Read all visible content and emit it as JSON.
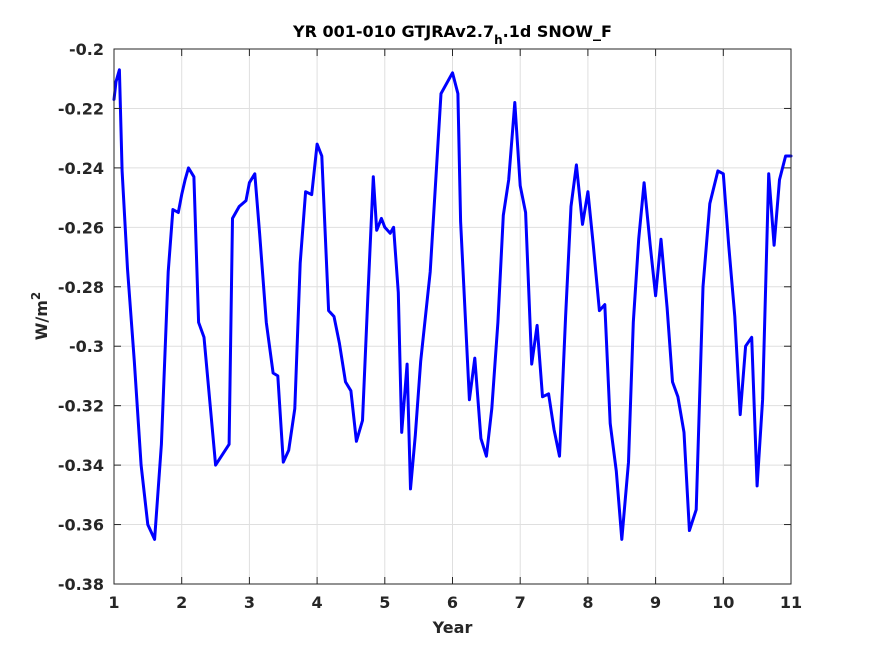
{
  "chart_data": {
    "type": "line",
    "title": {
      "pre": "YR 001-010 GTJRAv2.7",
      "sub": "h",
      "post": ".1d SNOW_F"
    },
    "xlabel": "Year",
    "ylabel": {
      "base": "W/m",
      "sup": "2"
    },
    "xlim": [
      1,
      11
    ],
    "ylim": [
      -0.38,
      -0.2
    ],
    "xticks": [
      1,
      2,
      3,
      4,
      5,
      6,
      7,
      8,
      9,
      10,
      11
    ],
    "xtick_labels": [
      "1",
      "2",
      "3",
      "4",
      "5",
      "6",
      "7",
      "8",
      "9",
      "10",
      "11"
    ],
    "yticks": [
      -0.38,
      -0.36,
      -0.34,
      -0.32,
      -0.3,
      -0.28,
      -0.26,
      -0.24,
      -0.22,
      -0.2
    ],
    "ytick_labels": [
      "-0.38",
      "-0.36",
      "-0.34",
      "-0.32",
      "-0.3",
      "-0.28",
      "-0.26",
      "-0.24",
      "-0.22",
      "-0.2"
    ],
    "grid": true,
    "line_color": "#0000ff",
    "series": [
      {
        "x": [
          1.0,
          1.03,
          1.08,
          1.12,
          1.2,
          1.3,
          1.4,
          1.5,
          1.6,
          1.7,
          1.8,
          1.87,
          1.95,
          2.0,
          2.05,
          2.1,
          2.18,
          2.25,
          2.33,
          2.5,
          2.7,
          2.75,
          2.85,
          2.95,
          3.0,
          3.08,
          3.15,
          3.25,
          3.35,
          3.42,
          3.5,
          3.58,
          3.67,
          3.75,
          3.83,
          3.92,
          4.0,
          4.07,
          4.17,
          4.25,
          4.33,
          4.42,
          4.5,
          4.58,
          4.67,
          4.75,
          4.83,
          4.88,
          4.95,
          5.0,
          5.08,
          5.13,
          5.2,
          5.25,
          5.33,
          5.38,
          5.45,
          5.53,
          5.67,
          5.83,
          6.0,
          6.08,
          6.12,
          6.25,
          6.33,
          6.42,
          6.5,
          6.58,
          6.67,
          6.75,
          6.83,
          6.92,
          7.0,
          7.08,
          7.17,
          7.25,
          7.33,
          7.42,
          7.5,
          7.58,
          7.67,
          7.75,
          7.83,
          7.92,
          8.0,
          8.08,
          8.17,
          8.25,
          8.33,
          8.42,
          8.5,
          8.6,
          8.67,
          8.75,
          8.83,
          8.92,
          9.0,
          9.08,
          9.17,
          9.25,
          9.33,
          9.42,
          9.5,
          9.6,
          9.7,
          9.8,
          9.92,
          10.0,
          10.08,
          10.17,
          10.25,
          10.33,
          10.42,
          10.5,
          10.58,
          10.67,
          10.75,
          10.83,
          10.92,
          11.0
        ],
        "y": [
          -0.217,
          -0.211,
          -0.207,
          -0.241,
          -0.274,
          -0.305,
          -0.34,
          -0.36,
          -0.365,
          -0.333,
          -0.275,
          -0.254,
          -0.255,
          -0.249,
          -0.244,
          -0.24,
          -0.243,
          -0.292,
          -0.297,
          -0.34,
          -0.333,
          -0.257,
          -0.253,
          -0.251,
          -0.245,
          -0.242,
          -0.262,
          -0.292,
          -0.309,
          -0.31,
          -0.339,
          -0.335,
          -0.321,
          -0.272,
          -0.248,
          -0.249,
          -0.232,
          -0.236,
          -0.288,
          -0.29,
          -0.299,
          -0.312,
          -0.315,
          -0.332,
          -0.325,
          -0.283,
          -0.243,
          -0.261,
          -0.257,
          -0.26,
          -0.262,
          -0.26,
          -0.282,
          -0.329,
          -0.306,
          -0.348,
          -0.33,
          -0.305,
          -0.275,
          -0.215,
          -0.208,
          -0.215,
          -0.258,
          -0.318,
          -0.304,
          -0.331,
          -0.337,
          -0.321,
          -0.292,
          -0.256,
          -0.244,
          -0.218,
          -0.246,
          -0.255,
          -0.306,
          -0.293,
          -0.317,
          -0.316,
          -0.328,
          -0.337,
          -0.29,
          -0.253,
          -0.239,
          -0.259,
          -0.248,
          -0.266,
          -0.288,
          -0.286,
          -0.326,
          -0.342,
          -0.365,
          -0.339,
          -0.292,
          -0.264,
          -0.245,
          -0.266,
          -0.283,
          -0.264,
          -0.287,
          -0.312,
          -0.317,
          -0.329,
          -0.362,
          -0.355,
          -0.28,
          -0.252,
          -0.241,
          -0.242,
          -0.266,
          -0.29,
          -0.323,
          -0.3,
          -0.297,
          -0.347,
          -0.318,
          -0.242,
          -0.266,
          -0.244,
          -0.236,
          -0.236
        ]
      }
    ]
  }
}
